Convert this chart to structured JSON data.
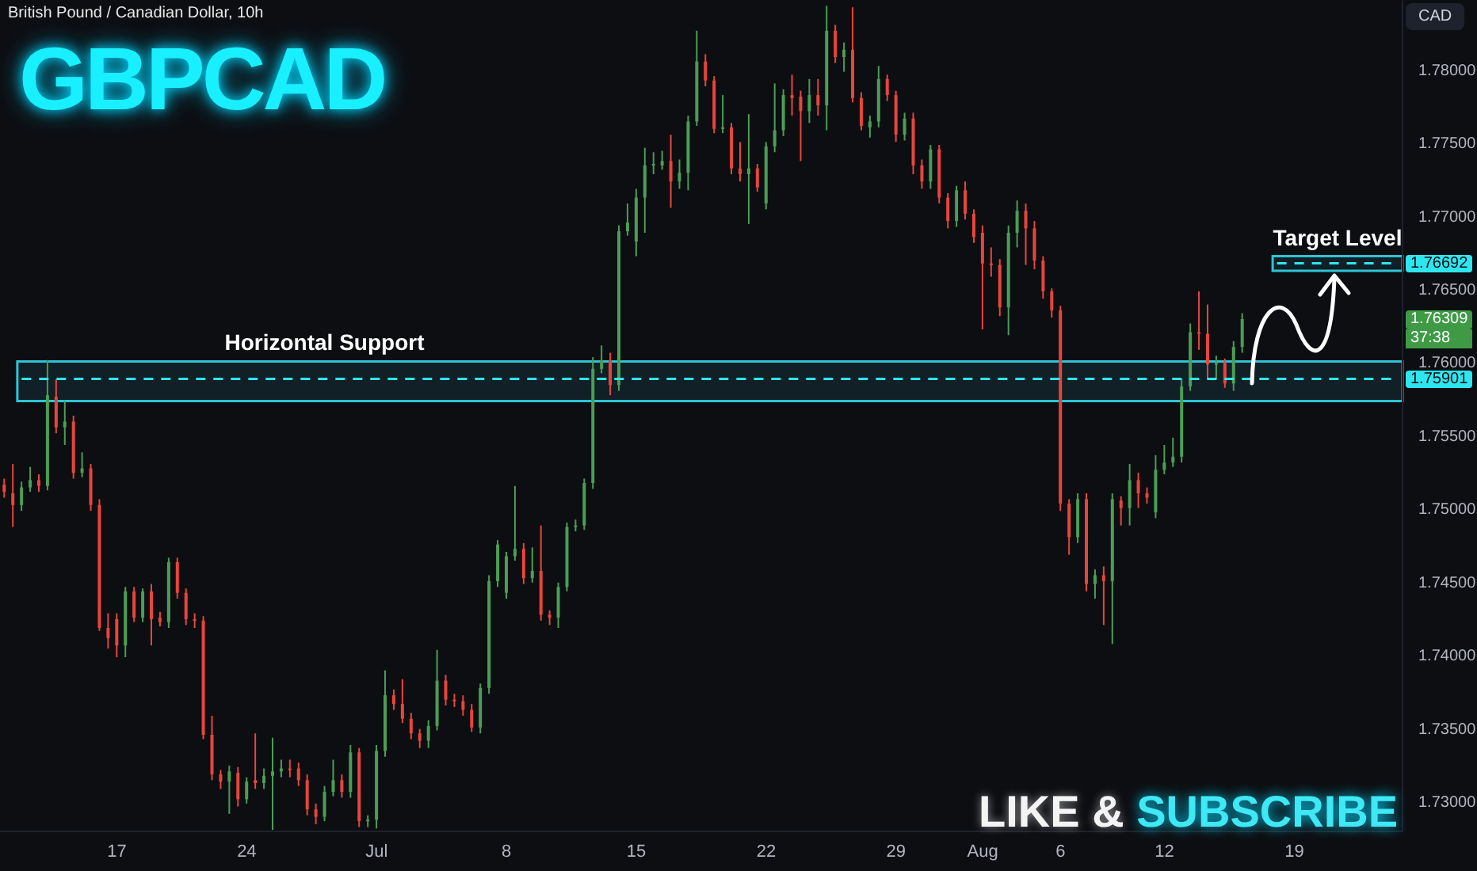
{
  "chart_data": {
    "type": "candlestick",
    "title": "GBPCAD",
    "subtitle": "British Pound / Canadian Dollar, 10h",
    "categories": [
      null,
      null,
      null,
      null,
      null,
      null,
      null,
      null,
      null,
      null,
      null,
      null,
      null,
      "17",
      null,
      null,
      null,
      null,
      null,
      null,
      null,
      null,
      null,
      null,
      null,
      null,
      null,
      null,
      "24",
      null,
      null,
      null,
      null,
      null,
      null,
      null,
      null,
      null,
      null,
      null,
      null,
      null,
      null,
      "Jul",
      null,
      null,
      null,
      null,
      null,
      null,
      null,
      null,
      null,
      null,
      null,
      null,
      null,
      null,
      "8",
      null,
      null,
      null,
      null,
      null,
      null,
      null,
      null,
      null,
      null,
      null,
      null,
      null,
      null,
      "15",
      null,
      null,
      null,
      null,
      null,
      null,
      null,
      null,
      null,
      null,
      null,
      null,
      null,
      null,
      "22",
      null,
      null,
      null,
      null,
      null,
      null,
      null,
      null,
      null,
      null,
      null,
      null,
      null,
      null,
      "29",
      null,
      null,
      null,
      null,
      null,
      null,
      null,
      null,
      null,
      "Aug",
      null,
      null,
      null,
      null,
      null,
      null,
      null,
      null,
      "6",
      null,
      null,
      null,
      null,
      null,
      null,
      null,
      null,
      null,
      null,
      null,
      "12",
      null,
      null,
      null,
      null,
      null,
      null,
      null,
      null,
      null,
      null,
      null,
      null,
      null,
      null,
      "19",
      null,
      null,
      null,
      null,
      null,
      null,
      null,
      null,
      null,
      null,
      null,
      null
    ],
    "ohlc": [
      [
        1.7518,
        1.7522,
        1.7509,
        1.7513
      ],
      [
        1.7512,
        1.7532,
        1.7489,
        1.7504
      ],
      [
        1.7504,
        1.752,
        1.75,
        1.7516
      ],
      [
        1.7516,
        1.753,
        1.7513,
        1.7521
      ],
      [
        1.7521,
        1.7525,
        1.7513,
        1.7517
      ],
      [
        1.7517,
        1.7603,
        1.7514,
        1.7579
      ],
      [
        1.7578,
        1.759,
        1.7553,
        1.7557
      ],
      [
        1.7557,
        1.7575,
        1.7545,
        1.7561
      ],
      [
        1.7561,
        1.7565,
        1.7522,
        1.7526
      ],
      [
        1.7526,
        1.754,
        1.7523,
        1.7529
      ],
      [
        1.7529,
        1.7532,
        1.75,
        1.7504
      ],
      [
        1.7504,
        1.7508,
        1.7418,
        1.742
      ],
      [
        1.742,
        1.743,
        1.7406,
        1.7413
      ],
      [
        1.7426,
        1.743,
        1.74,
        1.7408
      ],
      [
        1.7408,
        1.7448,
        1.74,
        1.7445
      ],
      [
        1.7445,
        1.7448,
        1.7424,
        1.7427
      ],
      [
        1.7427,
        1.7447,
        1.7424,
        1.7445
      ],
      [
        1.7445,
        1.745,
        1.7408,
        1.7426
      ],
      [
        1.7427,
        1.7431,
        1.7421,
        1.7424
      ],
      [
        1.7424,
        1.7468,
        1.742,
        1.7465
      ],
      [
        1.7465,
        1.7468,
        1.744,
        1.7444
      ],
      [
        1.7444,
        1.7447,
        1.7422,
        1.7426
      ],
      [
        1.7426,
        1.743,
        1.742,
        1.7425
      ],
      [
        1.7425,
        1.7428,
        1.7344,
        1.7347
      ],
      [
        1.7347,
        1.736,
        1.7316,
        1.732
      ],
      [
        1.732,
        1.7323,
        1.731,
        1.7315
      ],
      [
        1.7315,
        1.7326,
        1.7293,
        1.7322
      ],
      [
        1.7321,
        1.7325,
        1.7298,
        1.7303
      ],
      [
        1.7303,
        1.7318,
        1.73,
        1.7315
      ],
      [
        1.7316,
        1.7348,
        1.731,
        1.7314
      ],
      [
        1.7314,
        1.7324,
        1.731,
        1.7319
      ],
      [
        1.7319,
        1.7345,
        1.7282,
        1.7322
      ],
      [
        1.7322,
        1.733,
        1.7318,
        1.7324
      ],
      [
        1.7324,
        1.733,
        1.7318,
        1.7323
      ],
      [
        1.7324,
        1.7328,
        1.7312,
        1.7316
      ],
      [
        1.7316,
        1.732,
        1.7292,
        1.7296
      ],
      [
        1.7296,
        1.73,
        1.7286,
        1.7291
      ],
      [
        1.7291,
        1.7312,
        1.7288,
        1.7308
      ],
      [
        1.7308,
        1.733,
        1.7305,
        1.7316
      ],
      [
        1.7316,
        1.732,
        1.7304,
        1.7308
      ],
      [
        1.7308,
        1.734,
        1.7304,
        1.7335
      ],
      [
        1.7335,
        1.7338,
        1.7284,
        1.7288
      ],
      [
        1.7288,
        1.7292,
        1.7284,
        1.7289
      ],
      [
        1.7289,
        1.734,
        1.7283,
        1.7336
      ],
      [
        1.7336,
        1.7391,
        1.7332,
        1.7374
      ],
      [
        1.7374,
        1.7378,
        1.7364,
        1.7368
      ],
      [
        1.7368,
        1.7385,
        1.7355,
        1.7358
      ],
      [
        1.7358,
        1.7362,
        1.7344,
        1.7348
      ],
      [
        1.7348,
        1.7351,
        1.7338,
        1.7343
      ],
      [
        1.7343,
        1.7357,
        1.7338,
        1.7353
      ],
      [
        1.7353,
        1.7405,
        1.735,
        1.7384
      ],
      [
        1.7384,
        1.7388,
        1.7367,
        1.7371
      ],
      [
        1.7371,
        1.7375,
        1.7366,
        1.737
      ],
      [
        1.737,
        1.7374,
        1.736,
        1.7364
      ],
      [
        1.7364,
        1.7368,
        1.7349,
        1.7352
      ],
      [
        1.7352,
        1.7382,
        1.7348,
        1.7379
      ],
      [
        1.7379,
        1.7456,
        1.7375,
        1.7452
      ],
      [
        1.7452,
        1.748,
        1.7448,
        1.7477
      ],
      [
        1.7444,
        1.7472,
        1.744,
        1.7469
      ],
      [
        1.7469,
        1.7517,
        1.7466,
        1.7474
      ],
      [
        1.7474,
        1.7478,
        1.745,
        1.7454
      ],
      [
        1.7454,
        1.7475,
        1.7451,
        1.7459
      ],
      [
        1.7459,
        1.749,
        1.7425,
        1.7429
      ],
      [
        1.7429,
        1.7432,
        1.7422,
        1.7427
      ],
      [
        1.7427,
        1.7451,
        1.742,
        1.7448
      ],
      [
        1.7448,
        1.7492,
        1.7445,
        1.7489
      ],
      [
        1.7489,
        1.7494,
        1.7486,
        1.749
      ],
      [
        1.749,
        1.7522,
        1.7487,
        1.7519
      ],
      [
        1.7519,
        1.7605,
        1.7515,
        1.7597
      ],
      [
        1.7597,
        1.7613,
        1.7594,
        1.7603
      ],
      [
        1.7603,
        1.7608,
        1.7579,
        1.7586
      ],
      [
        1.7586,
        1.7695,
        1.7582,
        1.7691
      ],
      [
        1.7691,
        1.771,
        1.7688,
        1.7697
      ],
      [
        1.7684,
        1.772,
        1.7674,
        1.7714
      ],
      [
        1.7714,
        1.7748,
        1.769,
        1.7736
      ],
      [
        1.7736,
        1.7745,
        1.773,
        1.7737
      ],
      [
        1.7736,
        1.7746,
        1.7733,
        1.7739
      ],
      [
        1.7739,
        1.7757,
        1.7707,
        1.7725
      ],
      [
        1.7725,
        1.774,
        1.772,
        1.7731
      ],
      [
        1.7731,
        1.777,
        1.7719,
        1.7766
      ],
      [
        1.7766,
        1.7828,
        1.7763,
        1.7807
      ],
      [
        1.7807,
        1.7812,
        1.779,
        1.7794
      ],
      [
        1.7794,
        1.7797,
        1.7758,
        1.7761
      ],
      [
        1.7762,
        1.7784,
        1.7758,
        1.7762
      ],
      [
        1.7762,
        1.7765,
        1.773,
        1.7734
      ],
      [
        1.7734,
        1.7752,
        1.7725,
        1.773
      ],
      [
        1.773,
        1.7771,
        1.7696,
        1.7734
      ],
      [
        1.7734,
        1.7737,
        1.7718,
        1.7721
      ],
      [
        1.771,
        1.7752,
        1.7706,
        1.7749
      ],
      [
        1.7749,
        1.7792,
        1.7745,
        1.776
      ],
      [
        1.776,
        1.7788,
        1.7756,
        1.7784
      ],
      [
        1.7784,
        1.7798,
        1.777,
        1.7782
      ],
      [
        1.7783,
        1.7787,
        1.7739,
        1.7773
      ],
      [
        1.7773,
        1.7795,
        1.7765,
        1.7784
      ],
      [
        1.7784,
        1.7795,
        1.777,
        1.7777
      ],
      [
        1.7777,
        1.7845,
        1.776,
        1.7828
      ],
      [
        1.7828,
        1.7832,
        1.7806,
        1.781
      ],
      [
        1.781,
        1.782,
        1.78,
        1.7815
      ],
      [
        1.7815,
        1.7844,
        1.7779,
        1.7782
      ],
      [
        1.7782,
        1.7786,
        1.776,
        1.7763
      ],
      [
        1.7762,
        1.777,
        1.7755,
        1.7766
      ],
      [
        1.7766,
        1.7804,
        1.7762,
        1.7795
      ],
      [
        1.7795,
        1.7798,
        1.778,
        1.7784
      ],
      [
        1.7784,
        1.7787,
        1.7752,
        1.7757
      ],
      [
        1.7757,
        1.7772,
        1.7753,
        1.7768
      ],
      [
        1.7768,
        1.7772,
        1.773,
        1.7736
      ],
      [
        1.7736,
        1.774,
        1.772,
        1.7725
      ],
      [
        1.7725,
        1.775,
        1.772,
        1.7747
      ],
      [
        1.7747,
        1.775,
        1.771,
        1.7714
      ],
      [
        1.7714,
        1.7717,
        1.7693,
        1.7698
      ],
      [
        1.7698,
        1.7722,
        1.7694,
        1.7719
      ],
      [
        1.7719,
        1.7725,
        1.7699,
        1.7703
      ],
      [
        1.7703,
        1.7706,
        1.7683,
        1.7687
      ],
      [
        1.769,
        1.7695,
        1.7624,
        1.7669
      ],
      [
        1.7669,
        1.768,
        1.766,
        1.7668
      ],
      [
        1.7668,
        1.7672,
        1.7633,
        1.7639
      ],
      [
        1.7639,
        1.7695,
        1.762,
        1.769
      ],
      [
        1.769,
        1.7712,
        1.768,
        1.7705
      ],
      [
        1.7705,
        1.771,
        1.7668,
        1.7693
      ],
      [
        1.7693,
        1.7698,
        1.7665,
        1.7671
      ],
      [
        1.7671,
        1.7674,
        1.7645,
        1.765
      ],
      [
        1.765,
        1.7652,
        1.7632,
        1.7637
      ],
      [
        1.7637,
        1.764,
        1.75,
        1.7505
      ],
      [
        1.7505,
        1.7508,
        1.747,
        1.7482
      ],
      [
        1.7482,
        1.7512,
        1.7478,
        1.7508
      ],
      [
        1.7508,
        1.7512,
        1.7445,
        1.745
      ],
      [
        1.745,
        1.746,
        1.744,
        1.7456
      ],
      [
        1.7456,
        1.7462,
        1.7422,
        1.7452
      ],
      [
        1.7452,
        1.7512,
        1.7409,
        1.7508
      ],
      [
        1.7507,
        1.751,
        1.749,
        1.7502
      ],
      [
        1.7502,
        1.7532,
        1.749,
        1.7521
      ],
      [
        1.7521,
        1.7526,
        1.7502,
        1.7512
      ],
      [
        1.7512,
        1.7516,
        1.7505,
        1.7509
      ],
      [
        1.7499,
        1.7538,
        1.7495,
        1.7528
      ],
      [
        1.7528,
        1.7545,
        1.7525,
        1.7533
      ],
      [
        1.7533,
        1.755,
        1.753,
        1.7537
      ],
      [
        1.7537,
        1.759,
        1.7533,
        1.7585
      ],
      [
        1.7585,
        1.7628,
        1.7582,
        1.7622
      ],
      [
        1.7622,
        1.765,
        1.761,
        1.7621
      ],
      [
        1.7621,
        1.7641,
        1.759,
        1.76
      ],
      [
        1.76,
        1.7606,
        1.759,
        1.7601
      ],
      [
        1.7601,
        1.7604,
        1.7584,
        1.7587
      ],
      [
        1.7587,
        1.7616,
        1.7582,
        1.7612
      ],
      [
        1.7612,
        1.7635,
        1.7608,
        1.7631
      ],
      null,
      null,
      null,
      null,
      null,
      null,
      null,
      null,
      null,
      null,
      null,
      null,
      null,
      null,
      null,
      null,
      null,
      null
    ],
    "ylim": [
      1.7281,
      1.7849
    ],
    "yticks": [
      {
        "value": 1.73,
        "label": "1.73000"
      },
      {
        "value": 1.735,
        "label": "1.73500"
      },
      {
        "value": 1.74,
        "label": "1.74000"
      },
      {
        "value": 1.745,
        "label": "1.74500"
      },
      {
        "value": 1.75,
        "label": "1.75000"
      },
      {
        "value": 1.755,
        "label": "1.75500"
      },
      {
        "value": 1.76,
        "label": "1.76000"
      },
      {
        "value": 1.765,
        "label": "1.76500"
      },
      {
        "value": 1.77,
        "label": "1.77000"
      },
      {
        "value": 1.775,
        "label": "1.77500"
      },
      {
        "value": 1.78,
        "label": "1.78000"
      }
    ],
    "bands": [
      {
        "axis": "y",
        "from": 1.7575,
        "to": 1.7602,
        "label": "Horizontal Support",
        "color": "#2ec4d6"
      },
      {
        "axis": "y",
        "from": 1.7664,
        "to": 1.7674,
        "label": "Target Level",
        "color": "#2ec4d6"
      }
    ],
    "ref_lines": [
      {
        "axis": "y",
        "value": 1.75901,
        "label": "1.75901",
        "color": "#2ee6f0",
        "line_style": "dashed"
      },
      {
        "axis": "y",
        "value": 1.76692,
        "label": "1.76692",
        "color": "#2ee6f0",
        "line_style": "dashed"
      }
    ],
    "annotations": [
      "1.76309",
      "37:38",
      "CAD",
      "LIKE & SUBSCRIBE"
    ]
  }
}
